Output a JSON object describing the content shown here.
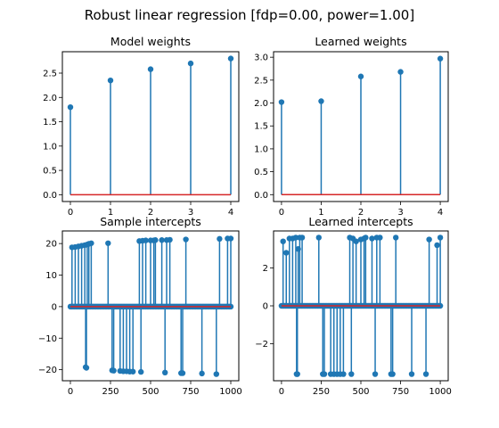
{
  "figure": {
    "suptitle": "Robust linear regression [fdp=0.00, power=1.00]"
  },
  "colors": {
    "stem": "#1f77b4",
    "baseline": "#d62728",
    "axes": "#000000"
  },
  "chart_data": [
    {
      "type": "stem",
      "title": "Model weights",
      "x": [
        0,
        1,
        2,
        3,
        4
      ],
      "values": [
        1.8,
        2.35,
        2.58,
        2.7,
        2.8
      ],
      "baseline": 0,
      "xlim": [
        -0.2,
        4.2
      ],
      "ylim": [
        -0.14,
        2.94
      ],
      "xticks": [
        0,
        1,
        2,
        3,
        4
      ],
      "xtick_labels": [
        "0",
        "1",
        "2",
        "3",
        "4"
      ],
      "yticks": [
        0.0,
        0.5,
        1.0,
        1.5,
        2.0,
        2.5
      ],
      "ytick_labels": [
        "0.0",
        "0.5",
        "1.0",
        "1.5",
        "2.0",
        "2.5"
      ]
    },
    {
      "type": "stem",
      "title": "Learned weights",
      "x": [
        0,
        1,
        2,
        3,
        4
      ],
      "values": [
        2.02,
        2.04,
        2.58,
        2.68,
        2.97
      ],
      "baseline": 0,
      "xlim": [
        -0.2,
        4.2
      ],
      "ylim": [
        -0.15,
        3.12
      ],
      "xticks": [
        0,
        1,
        2,
        3,
        4
      ],
      "xtick_labels": [
        "0",
        "1",
        "2",
        "3",
        "4"
      ],
      "yticks": [
        0.0,
        0.5,
        1.0,
        1.5,
        2.0,
        2.5,
        3.0
      ],
      "ytick_labels": [
        "0.0",
        "0.5",
        "1.0",
        "1.5",
        "2.0",
        "2.5",
        "3.0"
      ]
    },
    {
      "type": "stem",
      "title": "Sample intercepts",
      "x": [
        10,
        30,
        50,
        70,
        90,
        95,
        100,
        105,
        115,
        130,
        235,
        260,
        270,
        310,
        330,
        350,
        370,
        390,
        430,
        440,
        450,
        470,
        500,
        520,
        530,
        570,
        590,
        600,
        620,
        690,
        700,
        720,
        820,
        910,
        930,
        980,
        1000
      ],
      "values": [
        18.8,
        18.9,
        19.1,
        19.3,
        19.5,
        -19.2,
        -19.4,
        19.7,
        19.9,
        20.1,
        20.1,
        -20.2,
        -20.3,
        -20.4,
        -20.5,
        -20.5,
        -20.6,
        -20.6,
        20.8,
        -20.7,
        20.9,
        21.0,
        21.0,
        21.0,
        21.1,
        21.1,
        -20.9,
        21.1,
        21.2,
        -21.1,
        -21.1,
        21.3,
        -21.2,
        -21.4,
        21.5,
        21.6,
        21.6
      ],
      "zeros_x_range": [
        0,
        1000
      ],
      "zeros_count": 120,
      "baseline": 0,
      "xlim": [
        -50,
        1050
      ],
      "ylim": [
        -23.5,
        24.0
      ],
      "xticks": [
        0,
        250,
        500,
        750,
        1000
      ],
      "xtick_labels": [
        "0",
        "250",
        "500",
        "750",
        "1000"
      ],
      "yticks": [
        -20,
        -10,
        0,
        10,
        20
      ],
      "ytick_labels": [
        "−20",
        "−10",
        "0",
        "10",
        "20"
      ]
    },
    {
      "type": "stem",
      "title": "Learned intercepts",
      "x": [
        10,
        30,
        50,
        70,
        90,
        95,
        100,
        105,
        115,
        130,
        235,
        260,
        270,
        310,
        330,
        350,
        370,
        390,
        430,
        440,
        450,
        470,
        500,
        520,
        530,
        570,
        590,
        600,
        620,
        690,
        700,
        720,
        820,
        910,
        930,
        980,
        1000
      ],
      "values": [
        3.4,
        2.8,
        3.55,
        3.55,
        3.6,
        -3.6,
        -3.6,
        3.0,
        3.6,
        3.6,
        3.6,
        -3.6,
        -3.6,
        -3.6,
        -3.6,
        -3.6,
        -3.6,
        -3.6,
        3.6,
        -3.6,
        3.55,
        3.4,
        3.5,
        3.55,
        3.6,
        3.55,
        -3.6,
        3.6,
        3.6,
        -3.6,
        -3.6,
        3.6,
        -3.6,
        -3.6,
        3.5,
        3.2,
        3.6
      ],
      "zeros_x_range": [
        0,
        1000
      ],
      "zeros_count": 120,
      "baseline": 0,
      "xlim": [
        -50,
        1050
      ],
      "ylim": [
        -3.95,
        3.95
      ],
      "xticks": [
        0,
        250,
        500,
        750,
        1000
      ],
      "xtick_labels": [
        "0",
        "250",
        "500",
        "750",
        "1000"
      ],
      "yticks": [
        -2,
        0,
        2
      ],
      "ytick_labels": [
        "−2",
        "0",
        "2"
      ]
    }
  ]
}
